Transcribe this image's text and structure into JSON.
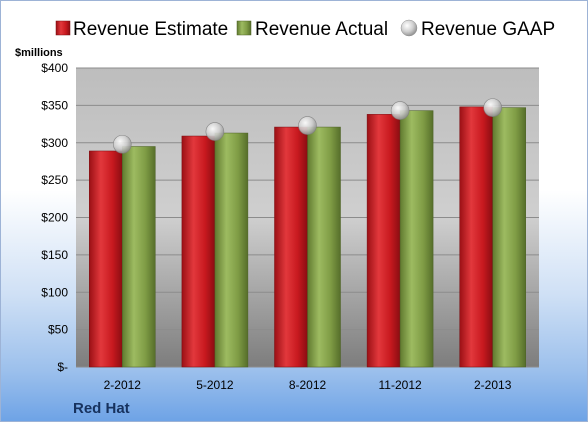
{
  "chart_data": {
    "type": "bar",
    "categories": [
      "2-2012",
      "5-2012",
      "8-2012",
      "11-2012",
      "2-2013"
    ],
    "series": [
      {
        "name": "Revenue Estimate",
        "kind": "bar",
        "color": "#cc1f24",
        "values": [
          289,
          309,
          321,
          338,
          348
        ]
      },
      {
        "name": "Revenue Actual",
        "kind": "bar",
        "color": "#86a64a",
        "values": [
          295,
          313,
          321,
          343,
          347
        ]
      },
      {
        "name": "Revenue GAAP",
        "kind": "marker",
        "color": "#c8c8c8",
        "values": [
          298,
          315,
          323,
          343,
          347
        ]
      }
    ],
    "ylabel": "$millions",
    "ylim": [
      0,
      400
    ],
    "yticks": [
      0,
      50,
      100,
      150,
      200,
      250,
      300,
      350,
      400
    ],
    "ytick_labels": [
      "$-",
      "$50",
      "$100",
      "$150",
      "$200",
      "$250",
      "$300",
      "$350",
      "$400"
    ],
    "grid": true,
    "legend": "top"
  },
  "brand": "Red Hat"
}
